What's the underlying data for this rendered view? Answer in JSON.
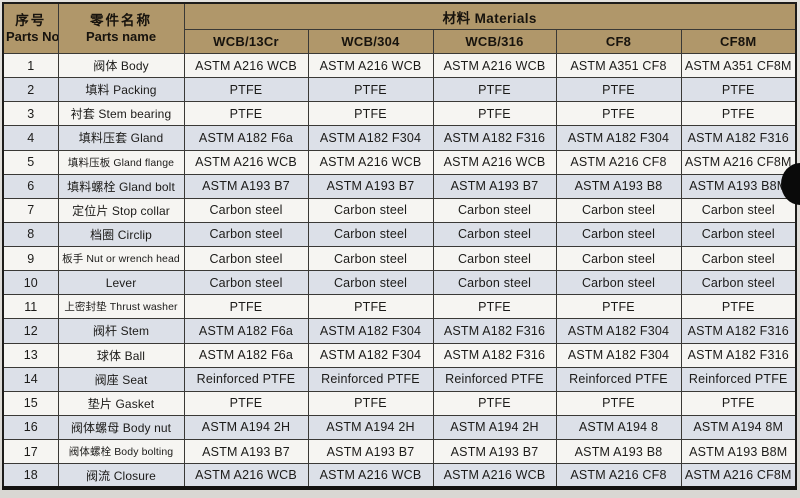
{
  "colors": {
    "header_bg": "#b0976a",
    "row_even": "#dce0e8",
    "row_odd": "#f6f5f2",
    "text": "#1c1b19"
  },
  "table": {
    "header": {
      "parts_no_zh": "序号",
      "parts_no_en": "Parts No.",
      "parts_name_zh": "零件名称",
      "parts_name_en": "Parts name",
      "materials_label": "材料 Materials",
      "material_columns": [
        "WCB/13Cr",
        "WCB/304",
        "WCB/316",
        "CF8",
        "CF8M"
      ]
    },
    "rows": [
      {
        "no": "1",
        "name": "阀体 Body",
        "materials": [
          "ASTM A216 WCB",
          "ASTM A216 WCB",
          "ASTM A216 WCB",
          "ASTM A351 CF8",
          "ASTM A351 CF8M"
        ]
      },
      {
        "no": "2",
        "name": "填料 Packing",
        "materials": [
          "PTFE",
          "PTFE",
          "PTFE",
          "PTFE",
          "PTFE"
        ]
      },
      {
        "no": "3",
        "name": "衬套 Stem bearing",
        "materials": [
          "PTFE",
          "PTFE",
          "PTFE",
          "PTFE",
          "PTFE"
        ]
      },
      {
        "no": "4",
        "name": "填料压套 Gland",
        "materials": [
          "ASTM A182 F6a",
          "ASTM A182 F304",
          "ASTM A182 F316",
          "ASTM A182 F304",
          "ASTM A182 F316"
        ]
      },
      {
        "no": "5",
        "name": "填料压板 Gland flange",
        "materials": [
          "ASTM A216 WCB",
          "ASTM A216 WCB",
          "ASTM A216 WCB",
          "ASTM A216 CF8",
          "ASTM A216 CF8M"
        ]
      },
      {
        "no": "6",
        "name": "填料螺栓 Gland bolt",
        "materials": [
          "ASTM A193 B7",
          "ASTM A193 B7",
          "ASTM A193 B7",
          "ASTM A193 B8",
          "ASTM A193 B8M"
        ]
      },
      {
        "no": "7",
        "name": "定位片 Stop collar",
        "materials": [
          "Carbon steel",
          "Carbon steel",
          "Carbon steel",
          "Carbon steel",
          "Carbon steel"
        ]
      },
      {
        "no": "8",
        "name": "档圈 Circlip",
        "materials": [
          "Carbon steel",
          "Carbon steel",
          "Carbon steel",
          "Carbon steel",
          "Carbon steel"
        ]
      },
      {
        "no": "9",
        "name": "板手 Nut or wrench head",
        "materials": [
          "Carbon steel",
          "Carbon steel",
          "Carbon steel",
          "Carbon steel",
          "Carbon steel"
        ]
      },
      {
        "no": "10",
        "name": "Lever",
        "materials": [
          "Carbon steel",
          "Carbon steel",
          "Carbon steel",
          "Carbon steel",
          "Carbon steel"
        ]
      },
      {
        "no": "11",
        "name": "上密封垫 Thrust washer",
        "materials": [
          "PTFE",
          "PTFE",
          "PTFE",
          "PTFE",
          "PTFE"
        ]
      },
      {
        "no": "12",
        "name": "阀杆 Stem",
        "materials": [
          "ASTM A182 F6a",
          "ASTM A182 F304",
          "ASTM A182 F316",
          "ASTM A182 F304",
          "ASTM A182 F316"
        ]
      },
      {
        "no": "13",
        "name": "球体 Ball",
        "materials": [
          "ASTM A182 F6a",
          "ASTM A182 F304",
          "ASTM A182 F316",
          "ASTM A182 F304",
          "ASTM A182 F316"
        ]
      },
      {
        "no": "14",
        "name": "阀座 Seat",
        "materials": [
          "Reinforced PTFE",
          "Reinforced PTFE",
          "Reinforced PTFE",
          "Reinforced PTFE",
          "Reinforced PTFE"
        ]
      },
      {
        "no": "15",
        "name": "垫片 Gasket",
        "materials": [
          "PTFE",
          "PTFE",
          "PTFE",
          "PTFE",
          "PTFE"
        ]
      },
      {
        "no": "16",
        "name": "阀体螺母 Body nut",
        "materials": [
          "ASTM A194 2H",
          "ASTM A194 2H",
          "ASTM A194 2H",
          "ASTM A194 8",
          "ASTM A194 8M"
        ]
      },
      {
        "no": "17",
        "name": "阀体螺栓 Body bolting",
        "materials": [
          "ASTM A193 B7",
          "ASTM A193 B7",
          "ASTM A193 B7",
          "ASTM A193 B8",
          "ASTM A193 B8M"
        ]
      },
      {
        "no": "18",
        "name": "阀流 Closure",
        "materials": [
          "ASTM A216 WCB",
          "ASTM A216 WCB",
          "ASTM A216 WCB",
          "ASTM A216 CF8",
          "ASTM A216 CF8M"
        ]
      }
    ]
  }
}
